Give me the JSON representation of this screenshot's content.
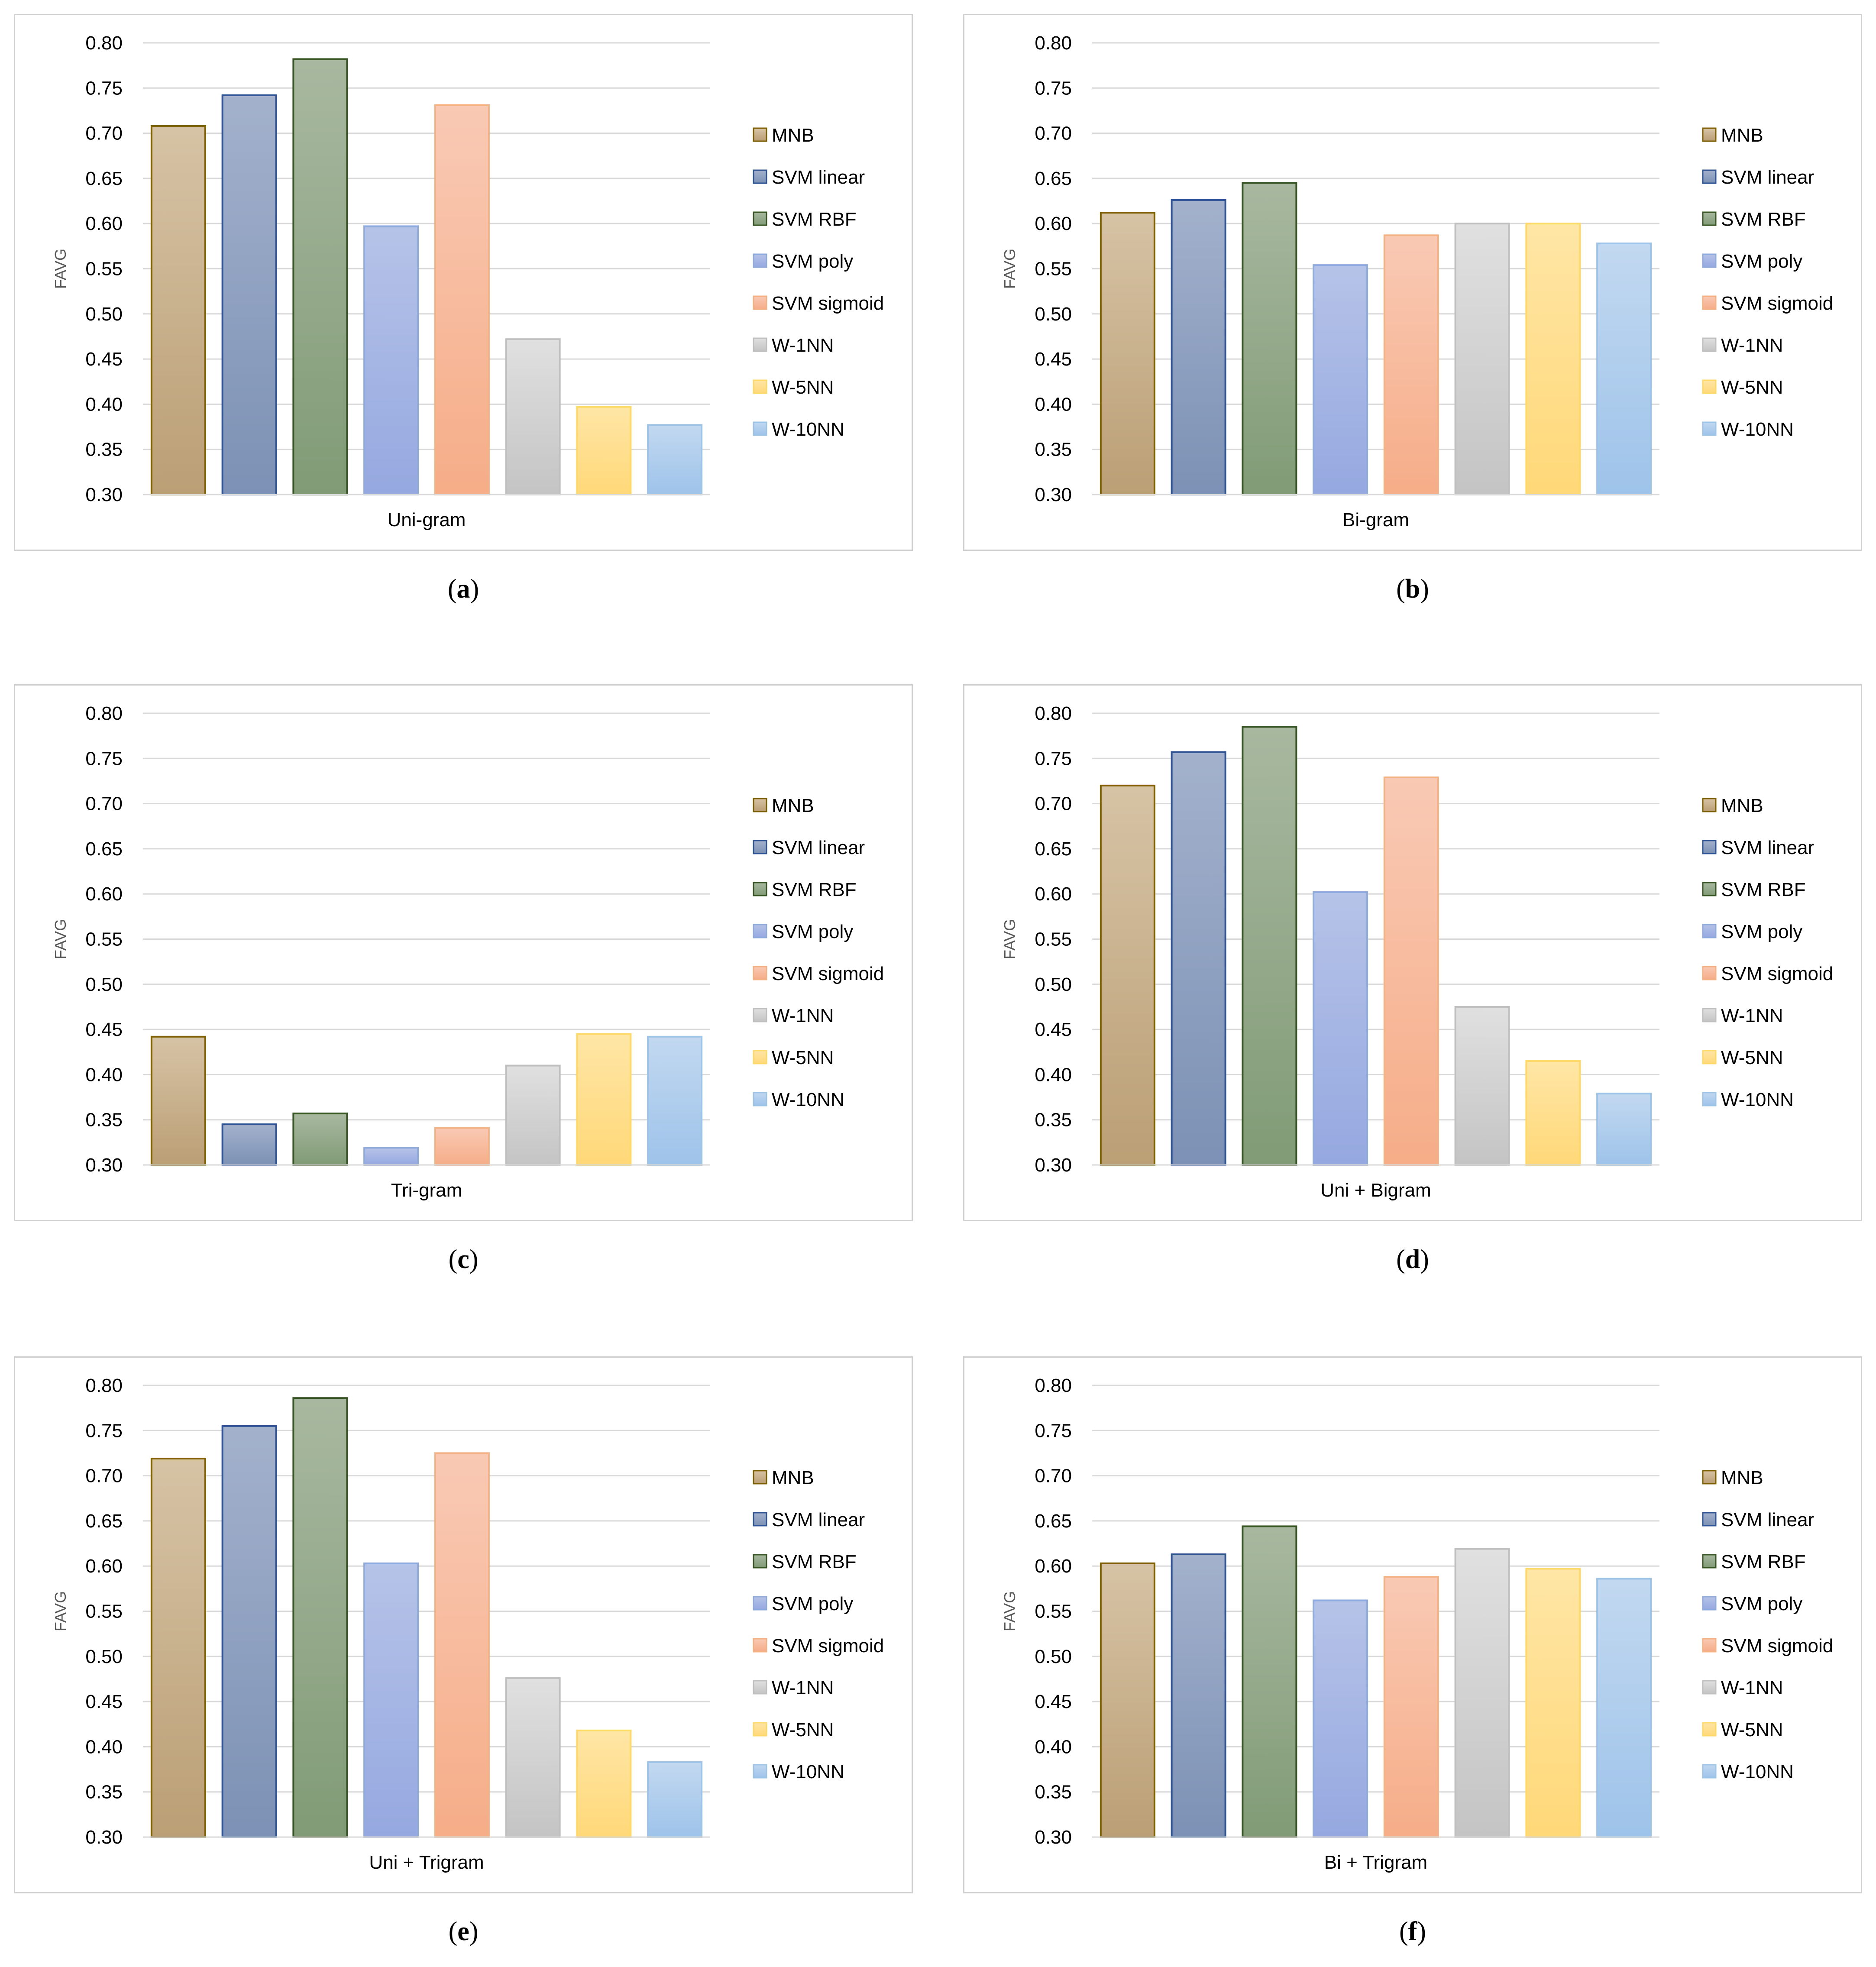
{
  "legend_labels": [
    "MNB",
    "SVM linear",
    "SVM RBF",
    "SVM poly",
    "SVM sigmoid",
    "W-1NN",
    "W-5NN",
    "W-10NN"
  ],
  "series_colors": {
    "top": [
      "#d6c3a5",
      "#a3b1cc",
      "#a8b8a0",
      "#b6c3e8",
      "#f9c9b4",
      "#e0e0e0",
      "#ffe6a6",
      "#c2d8f0"
    ],
    "bottom": [
      "#bb9f75",
      "#7c91b5",
      "#819b76",
      "#95a8e0",
      "#f6ad88",
      "#c4c4c4",
      "#ffd878",
      "#9ec3ea"
    ],
    "stroke": [
      "#7f6000",
      "#2f5597",
      "#375623",
      "#8faadc",
      "#f4b183",
      "#bfbfbf",
      "#ffd966",
      "#9dc3e6"
    ]
  },
  "chart_data": [
    {
      "type": "bar",
      "caption": "a",
      "xlabel": "Uni-gram",
      "ylabel": "FAVG",
      "ylim": [
        0.3,
        0.8
      ],
      "yticks": [
        "0.30",
        "0.35",
        "0.40",
        "0.45",
        "0.50",
        "0.55",
        "0.60",
        "0.65",
        "0.70",
        "0.75",
        "0.80"
      ],
      "categories": [
        "MNB",
        "SVM linear",
        "SVM RBF",
        "SVM poly",
        "SVM sigmoid",
        "W-1NN",
        "W-5NN",
        "W-10NN"
      ],
      "values": [
        0.708,
        0.742,
        0.782,
        0.597,
        0.731,
        0.472,
        0.397,
        0.377
      ]
    },
    {
      "type": "bar",
      "caption": "b",
      "xlabel": "Bi-gram",
      "ylabel": "FAVG",
      "ylim": [
        0.3,
        0.8
      ],
      "yticks": [
        "0.30",
        "0.35",
        "0.40",
        "0.45",
        "0.50",
        "0.55",
        "0.60",
        "0.65",
        "0.70",
        "0.75",
        "0.80"
      ],
      "categories": [
        "MNB",
        "SVM linear",
        "SVM RBF",
        "SVM poly",
        "SVM sigmoid",
        "W-1NN",
        "W-5NN",
        "W-10NN"
      ],
      "values": [
        0.612,
        0.626,
        0.645,
        0.554,
        0.587,
        0.6,
        0.6,
        0.578
      ]
    },
    {
      "type": "bar",
      "caption": "c",
      "xlabel": "Tri-gram",
      "ylabel": "FAVG",
      "ylim": [
        0.3,
        0.8
      ],
      "yticks": [
        "0.30",
        "0.35",
        "0.40",
        "0.45",
        "0.50",
        "0.55",
        "0.60",
        "0.65",
        "0.70",
        "0.75",
        "0.80"
      ],
      "categories": [
        "MNB",
        "SVM linear",
        "SVM RBF",
        "SVM poly",
        "SVM sigmoid",
        "W-1NN",
        "W-5NN",
        "W-10NN"
      ],
      "values": [
        0.442,
        0.345,
        0.357,
        0.319,
        0.341,
        0.41,
        0.445,
        0.442
      ]
    },
    {
      "type": "bar",
      "caption": "d",
      "xlabel": "Uni + Bigram",
      "ylabel": "FAVG",
      "ylim": [
        0.3,
        0.8
      ],
      "yticks": [
        "0.30",
        "0.35",
        "0.40",
        "0.45",
        "0.50",
        "0.55",
        "0.60",
        "0.65",
        "0.70",
        "0.75",
        "0.80"
      ],
      "categories": [
        "MNB",
        "SVM linear",
        "SVM RBF",
        "SVM poly",
        "SVM sigmoid",
        "W-1NN",
        "W-5NN",
        "W-10NN"
      ],
      "values": [
        0.72,
        0.757,
        0.785,
        0.602,
        0.729,
        0.475,
        0.415,
        0.379
      ]
    },
    {
      "type": "bar",
      "caption": "e",
      "xlabel": "Uni + Trigram",
      "ylabel": "FAVG",
      "ylim": [
        0.3,
        0.8
      ],
      "yticks": [
        "0.30",
        "0.35",
        "0.40",
        "0.45",
        "0.50",
        "0.55",
        "0.60",
        "0.65",
        "0.70",
        "0.75",
        "0.80"
      ],
      "categories": [
        "MNB",
        "SVM linear",
        "SVM RBF",
        "SVM poly",
        "SVM sigmoid",
        "W-1NN",
        "W-5NN",
        "W-10NN"
      ],
      "values": [
        0.719,
        0.755,
        0.786,
        0.603,
        0.725,
        0.476,
        0.418,
        0.383
      ]
    },
    {
      "type": "bar",
      "caption": "f",
      "xlabel": "Bi + Trigram",
      "ylabel": "FAVG",
      "ylim": [
        0.3,
        0.8
      ],
      "yticks": [
        "0.30",
        "0.35",
        "0.40",
        "0.45",
        "0.50",
        "0.55",
        "0.60",
        "0.65",
        "0.70",
        "0.75",
        "0.80"
      ],
      "categories": [
        "MNB",
        "SVM linear",
        "SVM RBF",
        "SVM poly",
        "SVM sigmoid",
        "W-1NN",
        "W-5NN",
        "W-10NN"
      ],
      "values": [
        0.603,
        0.613,
        0.644,
        0.562,
        0.588,
        0.619,
        0.597,
        0.586
      ]
    }
  ]
}
